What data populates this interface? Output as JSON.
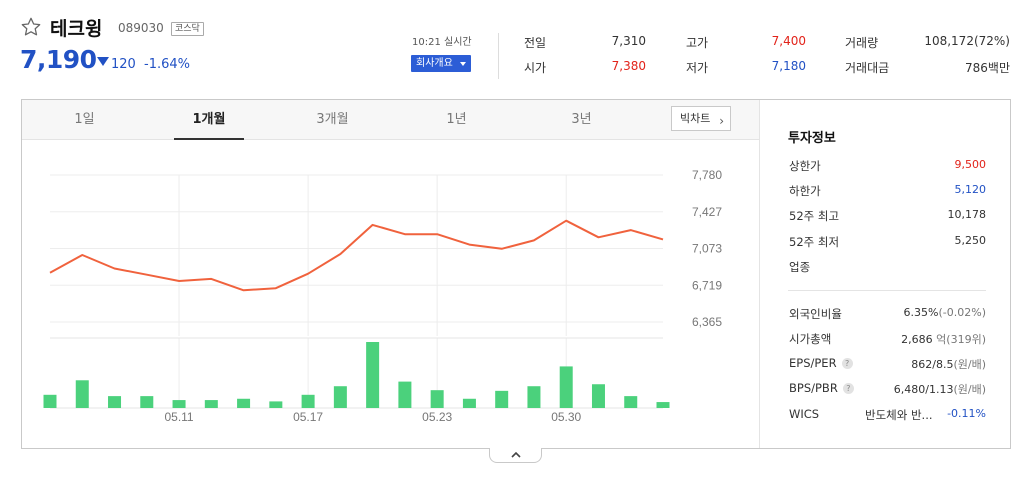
{
  "stock": {
    "name": "테크윙",
    "code": "089030",
    "market": "코스닥",
    "price": "7,190",
    "change_amount": "120",
    "change_percent": "-1.64%",
    "direction": "down"
  },
  "realtime": {
    "time_label": "10:21 실시간",
    "company_button": "회사개요"
  },
  "quote": {
    "prev_close": {
      "label": "전일",
      "value": "7,310"
    },
    "open": {
      "label": "시가",
      "value": "7,380"
    },
    "high": {
      "label": "고가",
      "value": "7,400"
    },
    "low": {
      "label": "저가",
      "value": "7,180"
    },
    "volume": {
      "label": "거래량",
      "value": "108,172(72%)"
    },
    "trade_value": {
      "label": "거래대금",
      "value": "786백만"
    }
  },
  "tabs": [
    {
      "label": "1일",
      "active": false
    },
    {
      "label": "1개월",
      "active": true
    },
    {
      "label": "3개월",
      "active": false
    },
    {
      "label": "1년",
      "active": false
    },
    {
      "label": "3년",
      "active": false
    }
  ],
  "bigchart_label": "빅차트",
  "chart_data": {
    "type": "line",
    "y_ticks": [
      "7,780",
      "7,427",
      "7,073",
      "6,719",
      "6,365"
    ],
    "ylim": [
      6365,
      7780
    ],
    "x_labels": [
      "05.11",
      "05.17",
      "05.23",
      "05.30"
    ],
    "x_label_index": [
      4,
      8,
      12,
      16
    ],
    "price": [
      6840,
      7010,
      6880,
      6820,
      6760,
      6780,
      6670,
      6690,
      6830,
      7020,
      7300,
      7210,
      7210,
      7110,
      7070,
      7150,
      7340,
      7180,
      7250,
      7160
    ],
    "volume": [
      0.2,
      0.42,
      0.18,
      0.18,
      0.12,
      0.12,
      0.14,
      0.1,
      0.2,
      0.33,
      1.0,
      0.4,
      0.27,
      0.14,
      0.26,
      0.33,
      0.63,
      0.36,
      0.18,
      0.09
    ],
    "line_color": "#f0623d",
    "bar_color": "#4bd17c",
    "grid": true
  },
  "invest": {
    "title": "투자정보",
    "upper_limit": {
      "label": "상한가",
      "value": "9,500"
    },
    "lower_limit": {
      "label": "하한가",
      "value": "5,120"
    },
    "w52_high": {
      "label": "52주 최고",
      "value": "10,178"
    },
    "w52_low": {
      "label": "52주 최저",
      "value": "5,250"
    },
    "sector": {
      "label": "업종"
    },
    "foreign_ratio": {
      "label": "외국인비율",
      "value": "6.35%",
      "extra": "(-0.02%)"
    },
    "market_cap": {
      "label": "시가총액",
      "value": "2,686",
      "unit": "억",
      "extra": "(319위)"
    },
    "eps_per": {
      "label": "EPS/PER",
      "value": "862/8.5",
      "unit": "(원/배)"
    },
    "bps_pbr": {
      "label": "BPS/PBR",
      "value": "6,480/1.13",
      "unit": "(원/배)"
    },
    "wics": {
      "label": "WICS",
      "value": "반도체와 반...",
      "change": "-0.11%"
    }
  },
  "colors": {
    "up": "#e2231a",
    "down": "#2151c4",
    "accent": "#2c5dd6"
  }
}
